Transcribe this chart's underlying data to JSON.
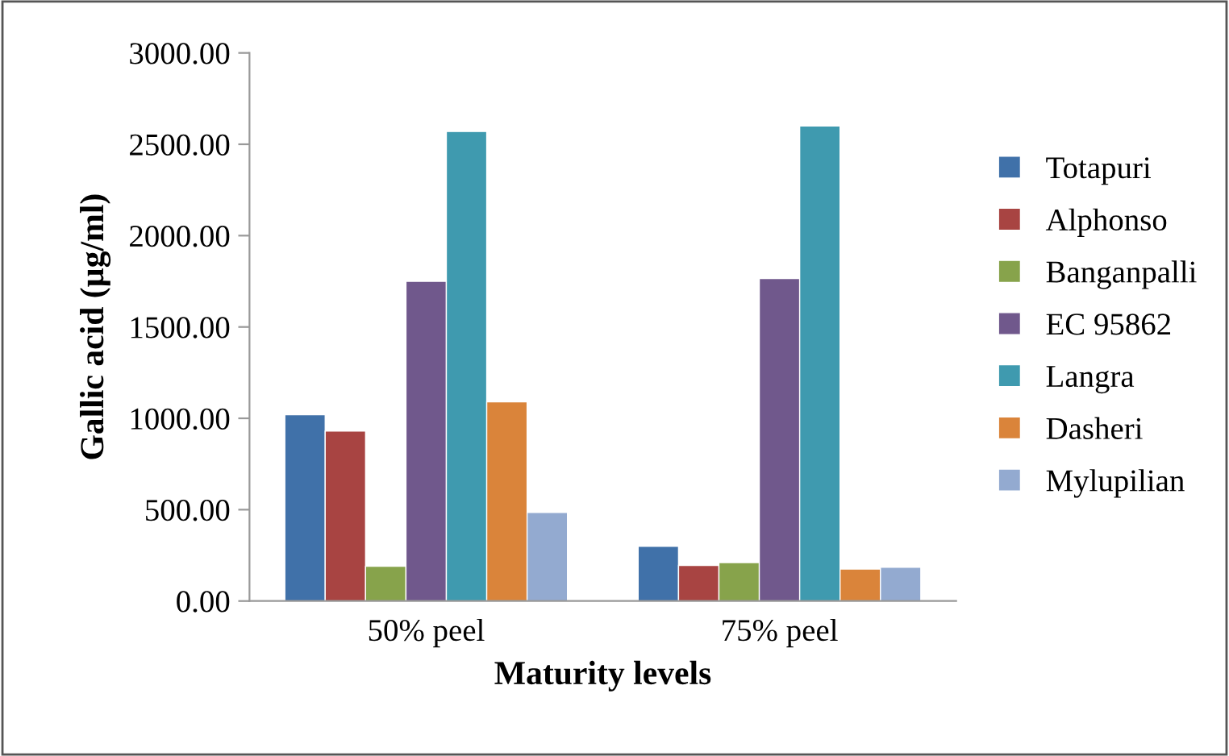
{
  "chart_data": {
    "type": "bar",
    "xlabel": "Maturity levels",
    "ylabel": "Gallic acid (µg/ml)",
    "categories": [
      "50% peel",
      "75% peel"
    ],
    "series": [
      {
        "name": "Totapuri",
        "color": "#4071a9",
        "values": [
          1020,
          300
        ]
      },
      {
        "name": "Alphonso",
        "color": "#a84442",
        "values": [
          930,
          195
        ]
      },
      {
        "name": "Banganpalli",
        "color": "#87a34b",
        "values": [
          190,
          210
        ]
      },
      {
        "name": "EC 95862",
        "color": "#70588c",
        "values": [
          1750,
          1765
        ]
      },
      {
        "name": "Langra",
        "color": "#3f9aaf",
        "values": [
          2570,
          2600
        ]
      },
      {
        "name": "Dasheri",
        "color": "#da843a",
        "values": [
          1090,
          175
        ]
      },
      {
        "name": "Mylupilian",
        "color": "#93aad0",
        "values": [
          485,
          185
        ]
      }
    ],
    "ylim": [
      0,
      3000
    ],
    "yticks": [
      {
        "value": 0,
        "label": "0.00"
      },
      {
        "value": 500,
        "label": "500.00"
      },
      {
        "value": 1000,
        "label": "1000.00"
      },
      {
        "value": 1500,
        "label": "1500.00"
      },
      {
        "value": 2000,
        "label": "2000.00"
      },
      {
        "value": 2500,
        "label": "2500.00"
      },
      {
        "value": 3000,
        "label": "3000.00"
      }
    ],
    "grid": false,
    "legend": "right"
  }
}
